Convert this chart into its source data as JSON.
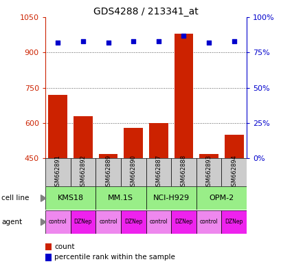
{
  "title": "GDS4288 / 213341_at",
  "samples": [
    "GSM662891",
    "GSM662892",
    "GSM662889",
    "GSM662890",
    "GSM662887",
    "GSM662888",
    "GSM662893",
    "GSM662894"
  ],
  "counts": [
    720,
    630,
    470,
    580,
    600,
    980,
    470,
    550
  ],
  "percentile_ranks": [
    82,
    83,
    82,
    83,
    83,
    87,
    82,
    83
  ],
  "ylim_left": [
    450,
    1050
  ],
  "ylim_right": [
    0,
    100
  ],
  "yticks_left": [
    450,
    600,
    750,
    900,
    1050
  ],
  "ytick_labels_left": [
    "450",
    "600",
    "750",
    "900",
    "1050"
  ],
  "yticks_right": [
    0,
    25,
    50,
    75,
    100
  ],
  "ytick_labels_right": [
    "0%",
    "25%",
    "50%",
    "75%",
    "100%"
  ],
  "bar_color": "#cc2200",
  "dot_color": "#0000cc",
  "grid_color": "#555555",
  "cell_lines": [
    "KMS18",
    "MM.1S",
    "NCI-H929",
    "OPM-2"
  ],
  "cell_line_spans": [
    [
      0,
      2
    ],
    [
      2,
      4
    ],
    [
      4,
      6
    ],
    [
      6,
      8
    ]
  ],
  "cell_line_color": "#99ee88",
  "agents": [
    "control",
    "DZNep",
    "control",
    "DZNep",
    "control",
    "DZNep",
    "control",
    "DZNep"
  ],
  "agent_color_control": "#ee88ee",
  "agent_color_dznep": "#ee22ee",
  "sample_bg_color": "#cccccc",
  "left_axis_color": "#cc2200",
  "right_axis_color": "#0000cc",
  "legend_count_color": "#cc2200",
  "legend_pct_color": "#0000cc"
}
